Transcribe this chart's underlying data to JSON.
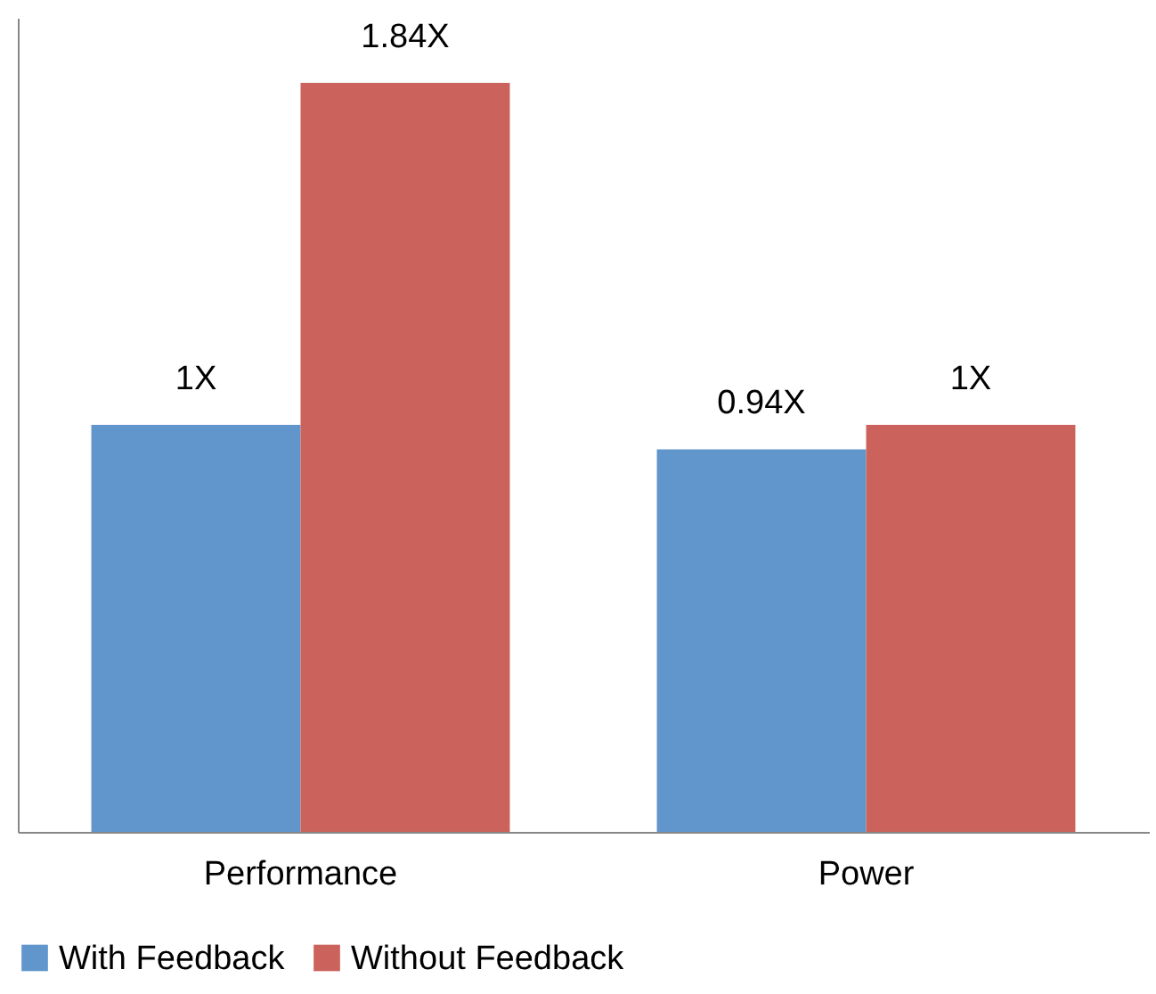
{
  "chart_data": {
    "type": "bar",
    "categories": [
      "Performance",
      "Power"
    ],
    "ylim": [
      0,
      2
    ],
    "legend": "bottom",
    "series": [
      {
        "name": "With Feedback",
        "color": "#6096cb",
        "values": [
          1,
          0.94
        ],
        "value_labels": [
          "1X",
          "0.94X"
        ]
      },
      {
        "name": "Without Feedback",
        "color": "#cb625c",
        "values": [
          1.84,
          1
        ],
        "value_labels": [
          "1.84X",
          "1X"
        ]
      }
    ]
  }
}
